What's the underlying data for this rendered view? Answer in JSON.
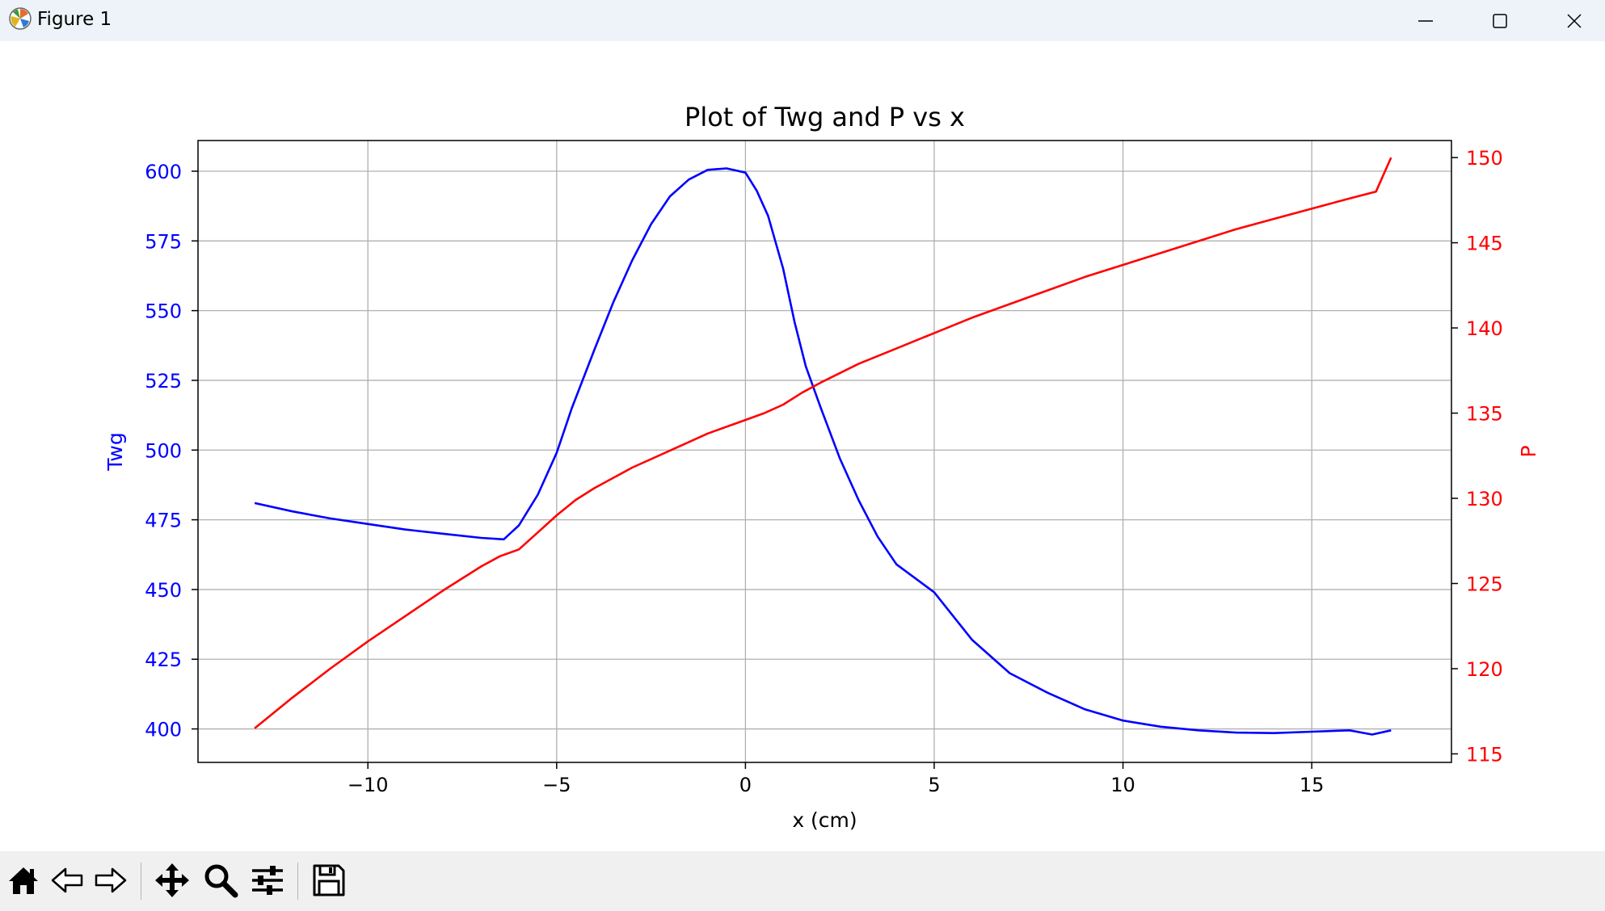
{
  "window": {
    "title": "Figure 1",
    "icons": {
      "app": "matplotlib-icon",
      "minimize": "minimize-icon",
      "maximize": "maximize-icon",
      "close": "close-icon"
    }
  },
  "toolbar": {
    "buttons": [
      {
        "name": "home",
        "icon": "home-icon"
      },
      {
        "name": "back",
        "icon": "arrow-left-icon"
      },
      {
        "name": "forward",
        "icon": "arrow-right-icon"
      },
      {
        "name": "pan",
        "icon": "move-icon"
      },
      {
        "name": "zoom",
        "icon": "magnifier-icon"
      },
      {
        "name": "configure-subplots",
        "icon": "sliders-icon"
      },
      {
        "name": "save",
        "icon": "floppy-disk-icon"
      }
    ]
  },
  "chart_data": {
    "type": "line",
    "title": "Plot of Twg and P vs x",
    "xlabel": "x (cm)",
    "ylabel_left": "Twg",
    "ylabel_right": "P",
    "xlim": [
      -14.5,
      18.7
    ],
    "ylim_left": [
      388,
      611
    ],
    "ylim_right": [
      114.5,
      151
    ],
    "xticks": [
      -10,
      -5,
      0,
      5,
      10,
      15
    ],
    "xtick_labels": [
      "−10",
      "−5",
      "0",
      "5",
      "10",
      "15"
    ],
    "yticks_left": [
      400,
      425,
      450,
      475,
      500,
      525,
      550,
      575,
      600
    ],
    "yticks_right": [
      115,
      120,
      125,
      130,
      135,
      140,
      145,
      150
    ],
    "grid": true,
    "colors": {
      "Twg": "#0000ff",
      "P": "#ff0000",
      "axes": "#000000",
      "grid": "#b0b0b0"
    },
    "series": [
      {
        "axis": "left",
        "color": "#0000ff",
        "x": [
          -13,
          -12,
          -11,
          -10,
          -9,
          -8,
          -7,
          -6.4,
          -6,
          -5.5,
          -5,
          -4.8,
          -4.6,
          -4,
          -3.5,
          -3,
          -2.5,
          -2,
          -1.5,
          -1,
          -0.5,
          0,
          0.3,
          0.6,
          1,
          1.3,
          1.6,
          2,
          2.5,
          3,
          3.5,
          4,
          5,
          6,
          7,
          8,
          9,
          10,
          11,
          12,
          13,
          14,
          15,
          16,
          16.6,
          17.1
        ],
        "y": [
          481,
          478,
          475.5,
          473.5,
          471.5,
          470,
          468.5,
          468,
          473,
          484,
          499,
          507,
          515,
          536,
          553,
          568,
          581,
          591,
          597,
          600.5,
          601,
          599.5,
          593,
          584,
          565,
          546,
          530,
          515,
          497,
          482,
          469,
          459,
          449,
          432,
          420,
          413,
          407,
          403,
          400.8,
          399.5,
          398.7,
          398.5,
          399,
          399.5,
          398,
          399.5
        ]
      },
      {
        "axis": "right",
        "color": "#ff0000",
        "x": [
          -13,
          -12,
          -11,
          -10,
          -9,
          -8,
          -7,
          -6.5,
          -6,
          -5.5,
          -5,
          -4.5,
          -4,
          -3,
          -2,
          -1,
          0,
          0.5,
          1,
          1.5,
          2,
          3,
          4,
          5,
          6,
          7,
          8,
          9,
          10,
          11,
          12,
          13,
          14,
          15,
          16,
          16.7,
          17.1
        ],
        "y": [
          116.5,
          118.3,
          120,
          121.6,
          123.1,
          124.6,
          126,
          126.6,
          127,
          128,
          129,
          129.9,
          130.6,
          131.8,
          132.8,
          133.8,
          134.6,
          135,
          135.5,
          136.2,
          136.8,
          137.9,
          138.8,
          139.7,
          140.6,
          141.4,
          142.2,
          143,
          143.7,
          144.4,
          145.1,
          145.8,
          146.4,
          147,
          147.6,
          148,
          150
        ]
      }
    ]
  }
}
